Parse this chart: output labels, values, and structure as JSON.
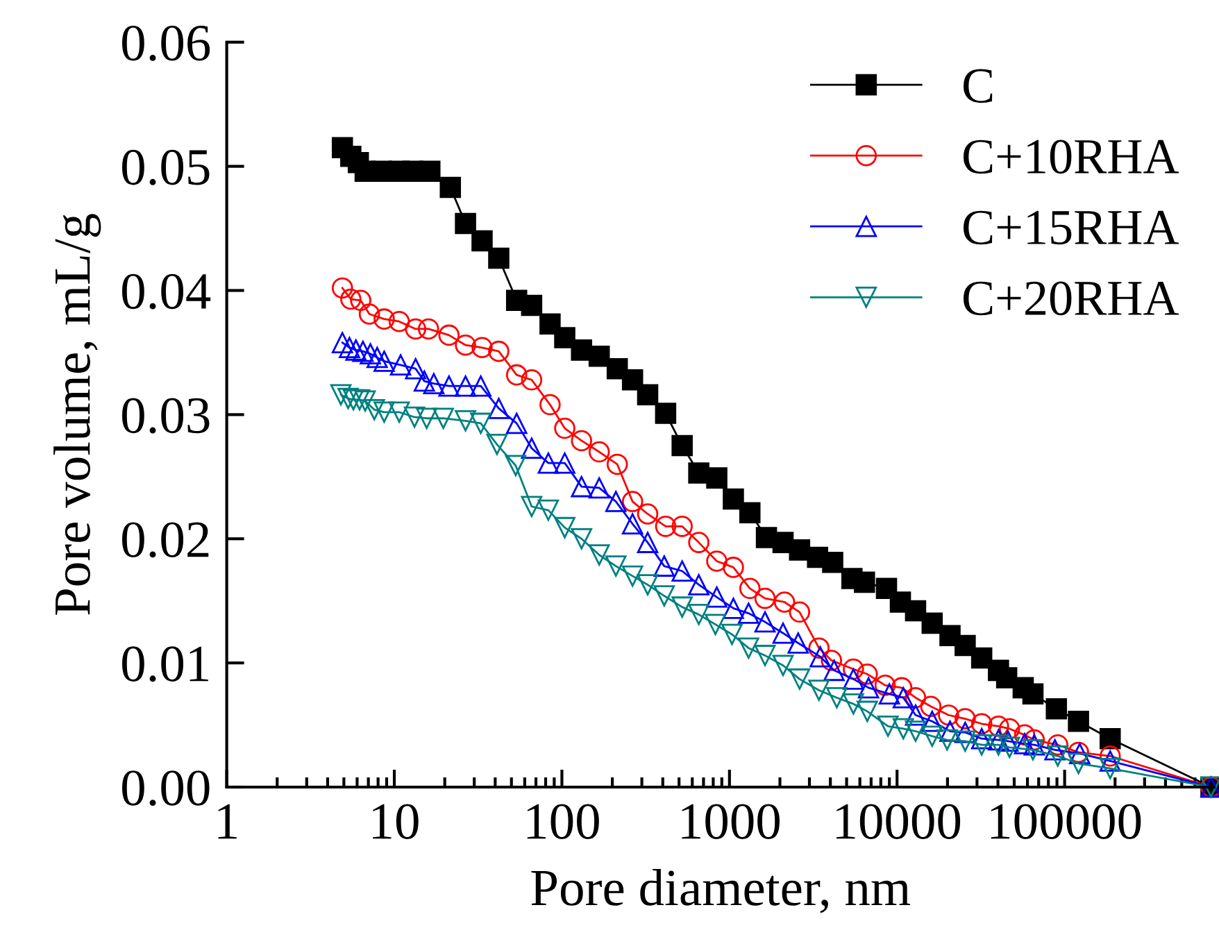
{
  "chart_data": {
    "type": "line",
    "xlabel": "Pore diameter, nm",
    "ylabel": "Pore volume, mL/g",
    "log": "x",
    "xlim": [
      1,
      780000
    ],
    "xticks": [
      1,
      10,
      100,
      1000,
      10000,
      100000
    ],
    "ylim": [
      0,
      0.06
    ],
    "yticks": [
      {
        "value": 0,
        "label": "0.00"
      },
      {
        "value": 0.01,
        "label": "0.01"
      },
      {
        "value": 0.02,
        "label": "0.02"
      },
      {
        "value": 0.03,
        "label": "0.03"
      },
      {
        "value": 0.04,
        "label": "0.04"
      },
      {
        "value": 0.05,
        "label": "0.05"
      },
      {
        "value": 0.06,
        "label": "0.06"
      }
    ],
    "grid": false,
    "legend": "top right",
    "line_style": "solid",
    "series": [
      {
        "name": "C",
        "color": "#000000",
        "marker": "square",
        "x": [
          4.9,
          5.5,
          6.1,
          6.7,
          8.4,
          10.7,
          12.9,
          16.3,
          21.6,
          26.6,
          33.4,
          42,
          53.7,
          66,
          85,
          104,
          131,
          167,
          214,
          264,
          325,
          416,
          522,
          656,
          840,
          1055,
          1324,
          1662,
          2088,
          2620,
          3355,
          4130,
          5380,
          6390,
          8650,
          10470,
          12900,
          16200,
          20700,
          25500,
          32000,
          40300,
          45100,
          56600,
          64700,
          89300,
          121000,
          187000,
          747000
        ],
        "values": [
          0.0515,
          0.0508,
          0.0503,
          0.0496,
          0.0496,
          0.0496,
          0.0496,
          0.0496,
          0.0483,
          0.0454,
          0.044,
          0.0426,
          0.0392,
          0.0388,
          0.0373,
          0.0362,
          0.0352,
          0.0347,
          0.0337,
          0.0328,
          0.0316,
          0.0301,
          0.0275,
          0.0253,
          0.0249,
          0.0232,
          0.0221,
          0.0201,
          0.0197,
          0.0191,
          0.0185,
          0.0181,
          0.0168,
          0.0165,
          0.016,
          0.0149,
          0.0142,
          0.0132,
          0.0122,
          0.0114,
          0.0104,
          0.0094,
          0.0088,
          0.008,
          0.0075,
          0.0063,
          0.0053,
          0.0039,
          0
        ]
      },
      {
        "name": "C+10RHA",
        "color": "#ff0000",
        "marker": "circle",
        "x": [
          4.9,
          5.5,
          6.3,
          7.1,
          8.7,
          10.7,
          13.4,
          16,
          21.2,
          26.6,
          33.4,
          42,
          53.7,
          66,
          85,
          104,
          131,
          167,
          214,
          264,
          325,
          416,
          522,
          656,
          840,
          1055,
          1324,
          1630,
          2130,
          2620,
          3420,
          4060,
          5490,
          6640,
          8490,
          10670,
          12900,
          15900,
          20300,
          25500,
          32000,
          40300,
          46900,
          57700,
          65900,
          91000,
          121000,
          187000,
          747000
        ],
        "values": [
          0.0402,
          0.0393,
          0.0392,
          0.0381,
          0.0377,
          0.0375,
          0.0369,
          0.0369,
          0.0364,
          0.0356,
          0.0354,
          0.0351,
          0.0332,
          0.0328,
          0.0308,
          0.0289,
          0.0279,
          0.027,
          0.026,
          0.023,
          0.022,
          0.021,
          0.021,
          0.0197,
          0.0182,
          0.0177,
          0.016,
          0.0152,
          0.0149,
          0.0141,
          0.0112,
          0.0102,
          0.0095,
          0.0091,
          0.0082,
          0.008,
          0.0072,
          0.0065,
          0.0058,
          0.0055,
          0.0051,
          0.0049,
          0.0047,
          0.0042,
          0.0038,
          0.0034,
          0.0028,
          0.0025,
          0
        ]
      },
      {
        "name": "C+15RHA",
        "color": "#0000ff",
        "marker": "triangle",
        "x": [
          4.9,
          5.4,
          5.9,
          6.5,
          7.2,
          7.9,
          8.7,
          10.9,
          13.4,
          15.1,
          17.2,
          21.2,
          26.6,
          32.8,
          42,
          53.7,
          66,
          83,
          104,
          131,
          167,
          210,
          264,
          325,
          408,
          522,
          656,
          840,
          1055,
          1300,
          1630,
          2088,
          2570,
          3480,
          4210,
          5490,
          6760,
          9000,
          10900,
          12900,
          16200,
          20700,
          25500,
          32000,
          40300,
          45900,
          57700,
          65900,
          87500,
          123000,
          187000,
          747000
        ],
        "values": [
          0.0358,
          0.0354,
          0.0352,
          0.0351,
          0.0349,
          0.0346,
          0.0343,
          0.034,
          0.0337,
          0.0327,
          0.0325,
          0.0323,
          0.0323,
          0.0323,
          0.0305,
          0.0293,
          0.0273,
          0.0261,
          0.0261,
          0.0242,
          0.0241,
          0.023,
          0.0212,
          0.0197,
          0.0178,
          0.0174,
          0.0163,
          0.0153,
          0.0144,
          0.014,
          0.0133,
          0.0124,
          0.0116,
          0.0105,
          0.0094,
          0.0087,
          0.008,
          0.0075,
          0.0072,
          0.0058,
          0.0053,
          0.0045,
          0.0044,
          0.0039,
          0.0038,
          0.0037,
          0.0035,
          0.0034,
          0.003,
          0.0027,
          0.0021,
          0
        ]
      },
      {
        "name": "C+20RHA",
        "color": "#008080",
        "marker": "triangle_down",
        "x": [
          4.8,
          5.3,
          5.7,
          6.2,
          6.7,
          7.6,
          8.7,
          10.7,
          13.2,
          15.6,
          19.6,
          26.6,
          32.8,
          41,
          53,
          66,
          83,
          104,
          131,
          167,
          210,
          264,
          325,
          408,
          522,
          656,
          824,
          1035,
          1300,
          1630,
          2088,
          2620,
          3420,
          4370,
          5490,
          6640,
          8830,
          10900,
          12900,
          16200,
          19900,
          25500,
          32000,
          40300,
          46900,
          64700,
          91000,
          121000,
          187000,
          747000
        ],
        "values": [
          0.0316,
          0.0313,
          0.0312,
          0.0312,
          0.0311,
          0.0304,
          0.0302,
          0.0302,
          0.0298,
          0.0297,
          0.0297,
          0.0295,
          0.0293,
          0.0276,
          0.0259,
          0.0226,
          0.0223,
          0.0209,
          0.02,
          0.0187,
          0.0178,
          0.017,
          0.0163,
          0.0154,
          0.0145,
          0.0139,
          0.0131,
          0.0123,
          0.0112,
          0.0106,
          0.0098,
          0.0087,
          0.0078,
          0.0072,
          0.0067,
          0.0061,
          0.0049,
          0.0047,
          0.0045,
          0.0041,
          0.0038,
          0.0037,
          0.0034,
          0.0034,
          0.0032,
          0.003,
          0.0025,
          0.0019,
          0.0015,
          0
        ]
      }
    ]
  }
}
